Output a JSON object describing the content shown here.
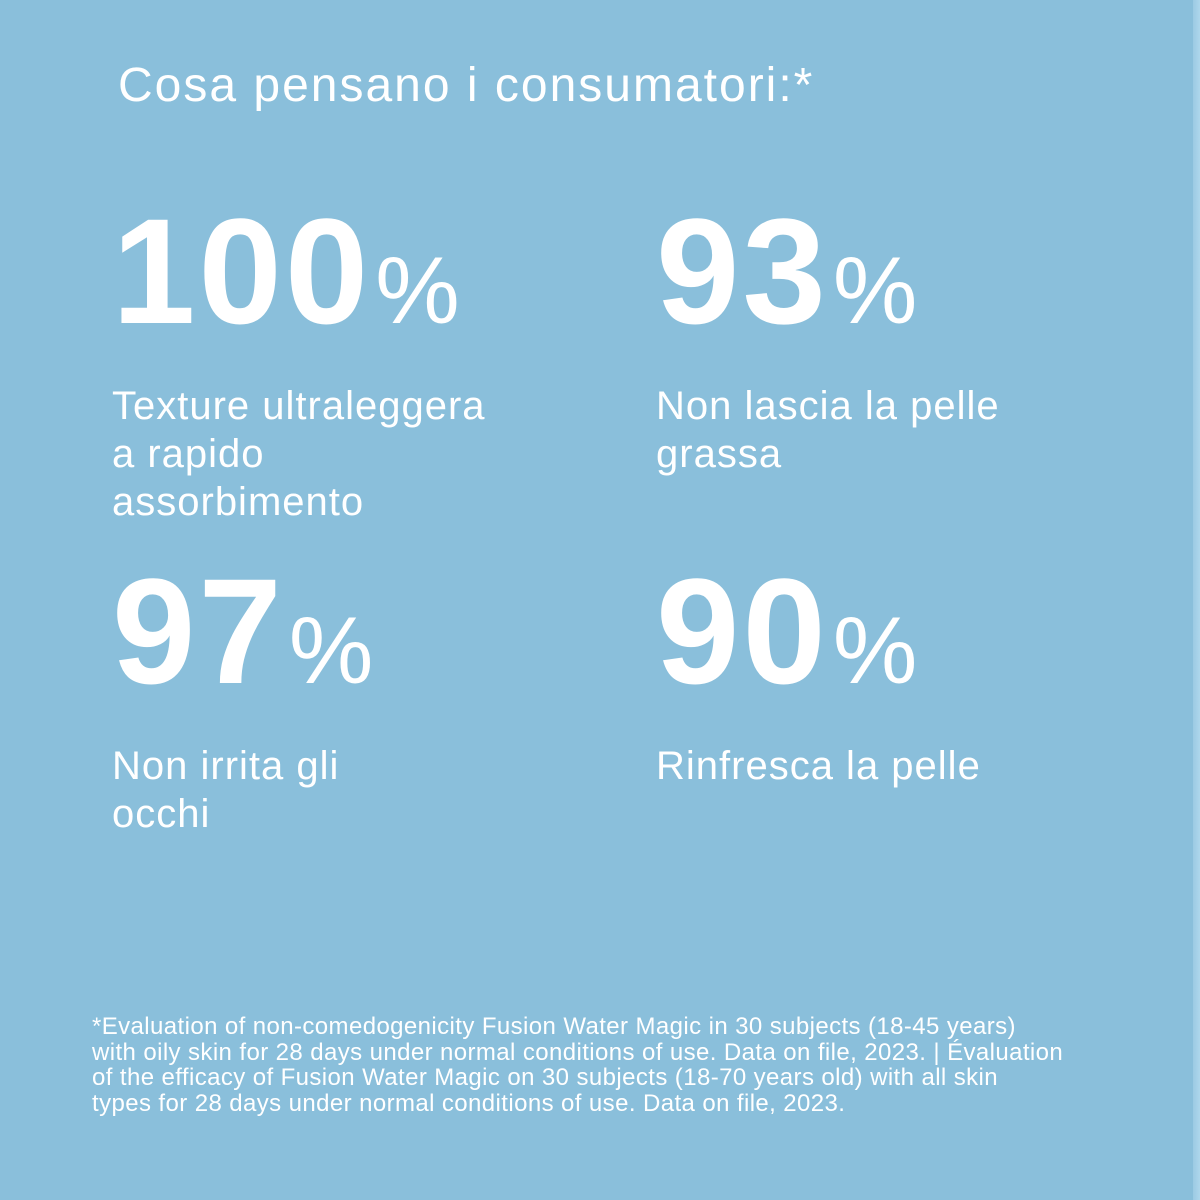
{
  "header": {
    "title": "Cosa pensano i consumatori:*"
  },
  "stats": [
    {
      "value": "100",
      "unit": "%",
      "label": "Texture ultraleggera\na rapido\nassorbimento"
    },
    {
      "value": "93",
      "unit": "%",
      "label": "Non lascia la pelle\ngrassa"
    },
    {
      "value": "97",
      "unit": "%",
      "label": "Non irrita gli\nocchi"
    },
    {
      "value": "90",
      "unit": "%",
      "label": "Rinfresca la pelle"
    }
  ],
  "footnote": {
    "text": "*Evaluation of non-comedogenicity Fusion Water Magic in 30 subjects (18-45 years)\nwith oily skin for 28 days under normal conditions of use. Data on file, 2023. | Évaluation\nof the efficacy of Fusion Water Magic on 30 subjects (18-70 years old) with all skin\ntypes for 28 days under normal conditions of use. Data on file, 2023."
  },
  "colors": {
    "background": "#8abfdb",
    "text": "#ffffff",
    "right_edge_strip": "#aed7ec"
  }
}
